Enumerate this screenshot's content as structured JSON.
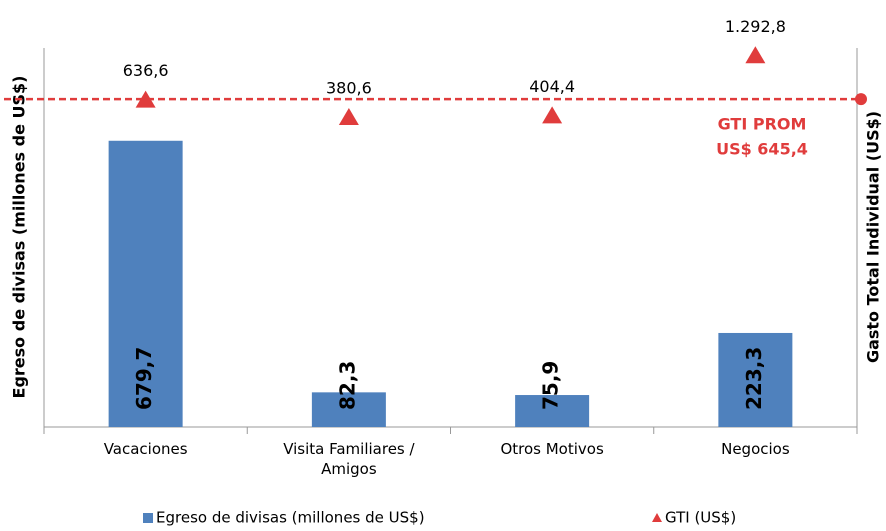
{
  "chart_data": {
    "type": "bar",
    "categories": [
      "Vacaciones",
      "Visita Familiares / Amigos",
      "Otros Motivos",
      "Negocios"
    ],
    "ylabel": "Egreso de divisas (millones de US$)",
    "y2label": "Gasto Total Individual (US$)",
    "ylim": [
      0,
      900
    ],
    "y2lim": [
      -4200,
      1400
    ],
    "series": [
      {
        "name": "Egreso de divisas (millones de US$)",
        "type": "bar",
        "color": "#4f81bd",
        "values": [
          679.7,
          82.3,
          75.9,
          223.3
        ],
        "value_labels": [
          "679,7",
          "82,3",
          "75,9",
          "223,3"
        ]
      },
      {
        "name": "GTI (US$)",
        "type": "scatter",
        "axis": "y2",
        "marker": "triangle",
        "color": "#e03c3c",
        "values": [
          636.6,
          380.6,
          404.4,
          1292.8
        ],
        "value_labels": [
          "636,6",
          "380,6",
          "404,4",
          "1.292,8"
        ]
      }
    ],
    "reference_line": {
      "name": "GTI PROM",
      "axis": "y2",
      "value": 645.4,
      "value_label": "US$ 645,4",
      "color": "#e03c3c"
    },
    "legend": "bottom"
  }
}
